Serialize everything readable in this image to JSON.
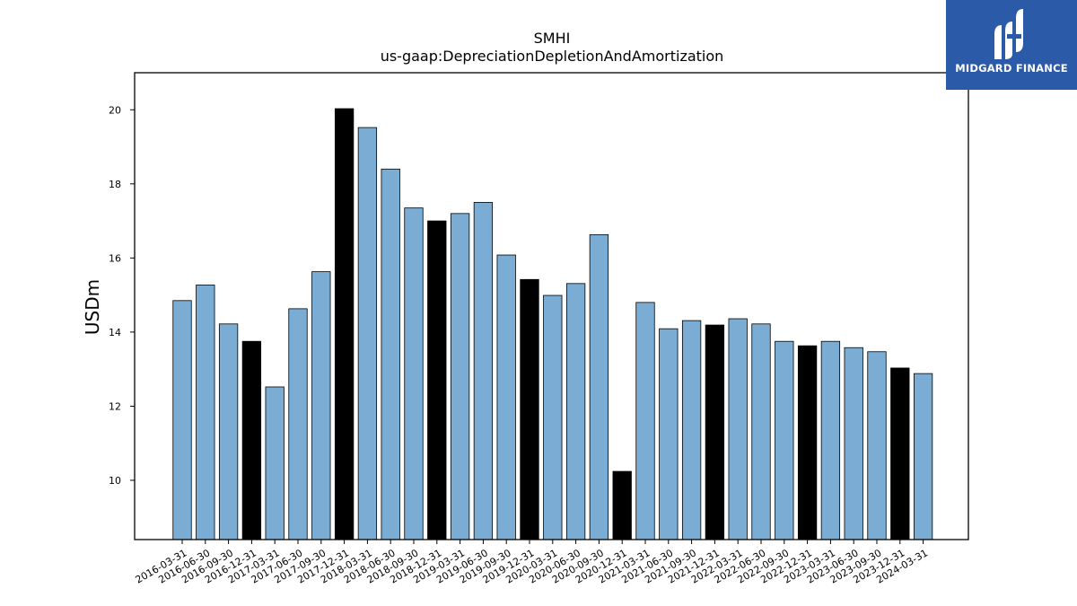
{
  "colors": {
    "regular_bar": "#7bacd3",
    "q4_bar": "#000000",
    "bar_edge": "#000000",
    "logo_bg": "#2b5aa8"
  },
  "logo": {
    "text": "MIDGARD FINANCE",
    "icon": "midgard-logo-icon"
  },
  "chart_data": {
    "type": "bar",
    "title": "SMHI",
    "subtitle": "us-gaap:DepreciationDepletionAndAmortization",
    "xlabel": "",
    "ylabel": "USDm",
    "ylim": [
      8.4,
      21.0
    ],
    "yticks": [
      10,
      12,
      14,
      16,
      18,
      20
    ],
    "grid": false,
    "highlight": "December quarter-end bars drawn in black",
    "categories": [
      "2016-03-31",
      "2016-06-30",
      "2016-09-30",
      "2016-12-31",
      "2017-03-31",
      "2017-06-30",
      "2017-09-30",
      "2017-12-31",
      "2018-03-31",
      "2018-06-30",
      "2018-09-30",
      "2018-12-31",
      "2019-03-31",
      "2019-06-30",
      "2019-09-30",
      "2019-12-31",
      "2020-03-31",
      "2020-06-30",
      "2020-09-30",
      "2020-12-31",
      "2021-03-31",
      "2021-06-30",
      "2021-09-30",
      "2021-12-31",
      "2022-03-31",
      "2022-06-30",
      "2022-09-30",
      "2022-12-31",
      "2023-03-31",
      "2023-06-30",
      "2023-09-30",
      "2023-12-31",
      "2024-03-31"
    ],
    "values": [
      14.85,
      15.27,
      14.22,
      13.75,
      12.52,
      14.63,
      15.63,
      20.03,
      19.52,
      18.4,
      17.35,
      17.0,
      17.2,
      17.5,
      16.08,
      15.42,
      14.99,
      15.31,
      16.63,
      10.24,
      14.8,
      14.09,
      14.31,
      14.19,
      14.36,
      14.22,
      13.75,
      13.63,
      13.75,
      13.58,
      13.47,
      13.03,
      12.88
    ]
  }
}
